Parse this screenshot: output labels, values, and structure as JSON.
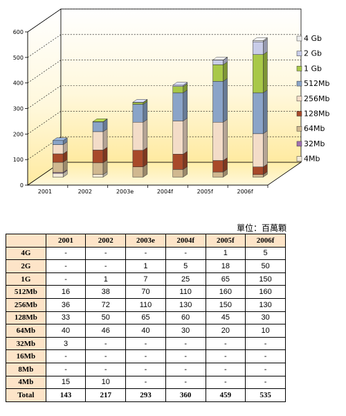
{
  "chart_data": {
    "type": "bar",
    "stacked": true,
    "categories": [
      "2001",
      "2002",
      "2003e",
      "2004f",
      "2005f",
      "2006f"
    ],
    "series": [
      {
        "name": "4Mb",
        "values": [
          15,
          10,
          0,
          0,
          0,
          0
        ],
        "color": "#f3ead8"
      },
      {
        "name": "32Mb",
        "values": [
          3,
          0,
          0,
          0,
          0,
          0
        ],
        "color": "#a070b0"
      },
      {
        "name": "64Mb",
        "values": [
          40,
          46,
          40,
          30,
          20,
          10
        ],
        "color": "#d0b890"
      },
      {
        "name": "128Mb",
        "values": [
          33,
          50,
          65,
          60,
          45,
          30
        ],
        "color": "#a84a2a"
      },
      {
        "name": "256Mb",
        "values": [
          36,
          72,
          110,
          130,
          150,
          130
        ],
        "color": "#f3dcc8"
      },
      {
        "name": "512Mb",
        "values": [
          16,
          38,
          70,
          110,
          160,
          160
        ],
        "color": "#8aa4c8"
      },
      {
        "name": "1 Gb",
        "values": [
          0,
          1,
          7,
          25,
          65,
          150
        ],
        "color": "#a8c848"
      },
      {
        "name": "2 Gb",
        "values": [
          0,
          0,
          1,
          5,
          18,
          50
        ],
        "color": "#c8cce8"
      },
      {
        "name": "4 Gb",
        "values": [
          0,
          0,
          0,
          0,
          1,
          5
        ],
        "color": "#ececec"
      }
    ],
    "legend_order": [
      "4 Gb",
      "2 Gb",
      "1 Gb",
      "512Mb",
      "256Mb",
      "128Mb",
      "64Mb",
      "32Mb",
      "4Mb"
    ],
    "ylim": [
      0,
      600
    ],
    "yticks": [
      0,
      100,
      200,
      300,
      400,
      500,
      600
    ],
    "grid": true,
    "legend_position": "right"
  },
  "unit_label": "單位：百萬顆",
  "table": {
    "columns": [
      "",
      "2001",
      "2002",
      "2003e",
      "2004f",
      "2005f",
      "2006f"
    ],
    "rows": [
      [
        "4G",
        "-",
        "-",
        "-",
        "-",
        "1",
        "5"
      ],
      [
        "2G",
        "-",
        "-",
        "1",
        "5",
        "18",
        "50"
      ],
      [
        "1G",
        "-",
        "1",
        "7",
        "25",
        "65",
        "150"
      ],
      [
        "512Mb",
        "16",
        "38",
        "70",
        "110",
        "160",
        "160"
      ],
      [
        "256Mb",
        "36",
        "72",
        "110",
        "130",
        "150",
        "130"
      ],
      [
        "128Mb",
        "33",
        "50",
        "65",
        "60",
        "45",
        "30"
      ],
      [
        "64Mb",
        "40",
        "46",
        "40",
        "30",
        "20",
        "10"
      ],
      [
        "32Mb",
        "3",
        "-",
        "-",
        "-",
        "-",
        "-"
      ],
      [
        "16Mb",
        "-",
        "-",
        "-",
        "-",
        "-",
        "-"
      ],
      [
        "8Mb",
        "-",
        "-",
        "-",
        "-",
        "-",
        "-"
      ],
      [
        "4Mb",
        "15",
        "10",
        "-",
        "-",
        "-",
        "-"
      ]
    ],
    "total": [
      "Total",
      "143",
      "217",
      "293",
      "360",
      "459",
      "535"
    ]
  }
}
